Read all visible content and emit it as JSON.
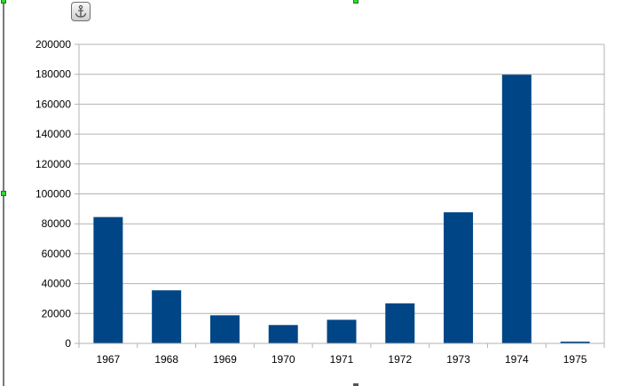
{
  "toolbar": {
    "anchor_icon": "anchor-icon"
  },
  "colors": {
    "bar": "#004586",
    "grid": "#b3b3b3",
    "axis": "#b3b3b3",
    "selection_handle": "#33d633"
  },
  "chart_data": {
    "type": "bar",
    "title": "",
    "xlabel": "",
    "ylabel": "",
    "categories": [
      "1967",
      "1968",
      "1969",
      "1970",
      "1971",
      "1972",
      "1973",
      "1974",
      "1975"
    ],
    "values": [
      84500,
      35500,
      18800,
      12300,
      15800,
      26800,
      87700,
      179700,
      1200
    ],
    "ylim": [
      0,
      200000
    ],
    "yticks": [
      "0",
      "20000",
      "40000",
      "60000",
      "80000",
      "100000",
      "120000",
      "140000",
      "160000",
      "180000",
      "200000"
    ],
    "grid": true,
    "legend": "none"
  }
}
